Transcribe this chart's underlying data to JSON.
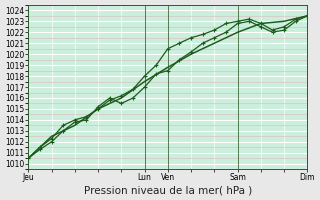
{
  "outer_bg": "#e8e8e8",
  "plot_bg": "#cceedd",
  "line_color": "#1a5c1a",
  "grid_white": "#ffffff",
  "grid_pink": "#ddbbbb",
  "ylabel": "Pression niveau de la mer( hPa )",
  "ylim": [
    1009.5,
    1024.5
  ],
  "ytick_vals": [
    1010,
    1011,
    1012,
    1013,
    1014,
    1015,
    1016,
    1017,
    1018,
    1019,
    1020,
    1021,
    1022,
    1023,
    1024
  ],
  "xtick_labels": [
    "Jeu",
    "",
    "Lun",
    "Ven",
    "",
    "Sam",
    "",
    "Dim"
  ],
  "xtick_positions": [
    0,
    3,
    5,
    6,
    7.5,
    9,
    10.5,
    12
  ],
  "vline_positions": [
    0,
    5,
    6,
    9,
    12
  ],
  "vline_labels": [
    "Jeu",
    "Lun",
    "Ven",
    "Sam",
    "Dim"
  ],
  "series1_x": [
    0,
    0.5,
    1.0,
    1.5,
    2.0,
    2.5,
    3.0,
    3.5,
    4.0,
    4.5,
    5.0,
    5.5,
    6.0,
    6.5,
    7.0,
    7.5,
    8.0,
    8.5,
    9.0,
    9.5,
    10.0,
    10.5,
    11.0,
    11.5,
    12.0
  ],
  "series1_y": [
    1010.5,
    1011.5,
    1012.3,
    1013.5,
    1014.0,
    1014.3,
    1015.0,
    1015.8,
    1016.2,
    1016.8,
    1018.0,
    1019.0,
    1020.5,
    1021.0,
    1021.5,
    1021.8,
    1022.2,
    1022.8,
    1023.0,
    1023.2,
    1022.8,
    1022.2,
    1022.5,
    1023.2,
    1023.5
  ],
  "series2_x": [
    0,
    0.5,
    1.0,
    1.5,
    2.0,
    2.5,
    3.0,
    3.5,
    4.0,
    4.5,
    5.0,
    5.5,
    6.0,
    6.5,
    7.0,
    7.5,
    8.0,
    8.5,
    9.0,
    9.5,
    10.0,
    10.5,
    11.0,
    11.5,
    12.0
  ],
  "series2_y": [
    1010.5,
    1011.3,
    1012.0,
    1013.0,
    1013.8,
    1014.0,
    1015.2,
    1016.0,
    1015.5,
    1016.0,
    1017.0,
    1018.2,
    1018.5,
    1019.5,
    1020.2,
    1021.0,
    1021.5,
    1022.0,
    1022.8,
    1023.0,
    1022.5,
    1022.0,
    1022.2,
    1023.0,
    1023.5
  ],
  "series3_x": [
    0,
    1,
    2,
    3,
    4,
    5,
    6,
    7,
    8,
    9,
    10,
    11,
    12
  ],
  "series3_y": [
    1010.5,
    1012.5,
    1013.5,
    1015.0,
    1016.0,
    1017.5,
    1018.8,
    1020.0,
    1021.0,
    1022.0,
    1022.8,
    1023.0,
    1023.5
  ],
  "marker": "+",
  "markersize": 3.5,
  "linewidth": 0.9,
  "tick_fontsize": 5.5,
  "label_fontsize": 7.5
}
